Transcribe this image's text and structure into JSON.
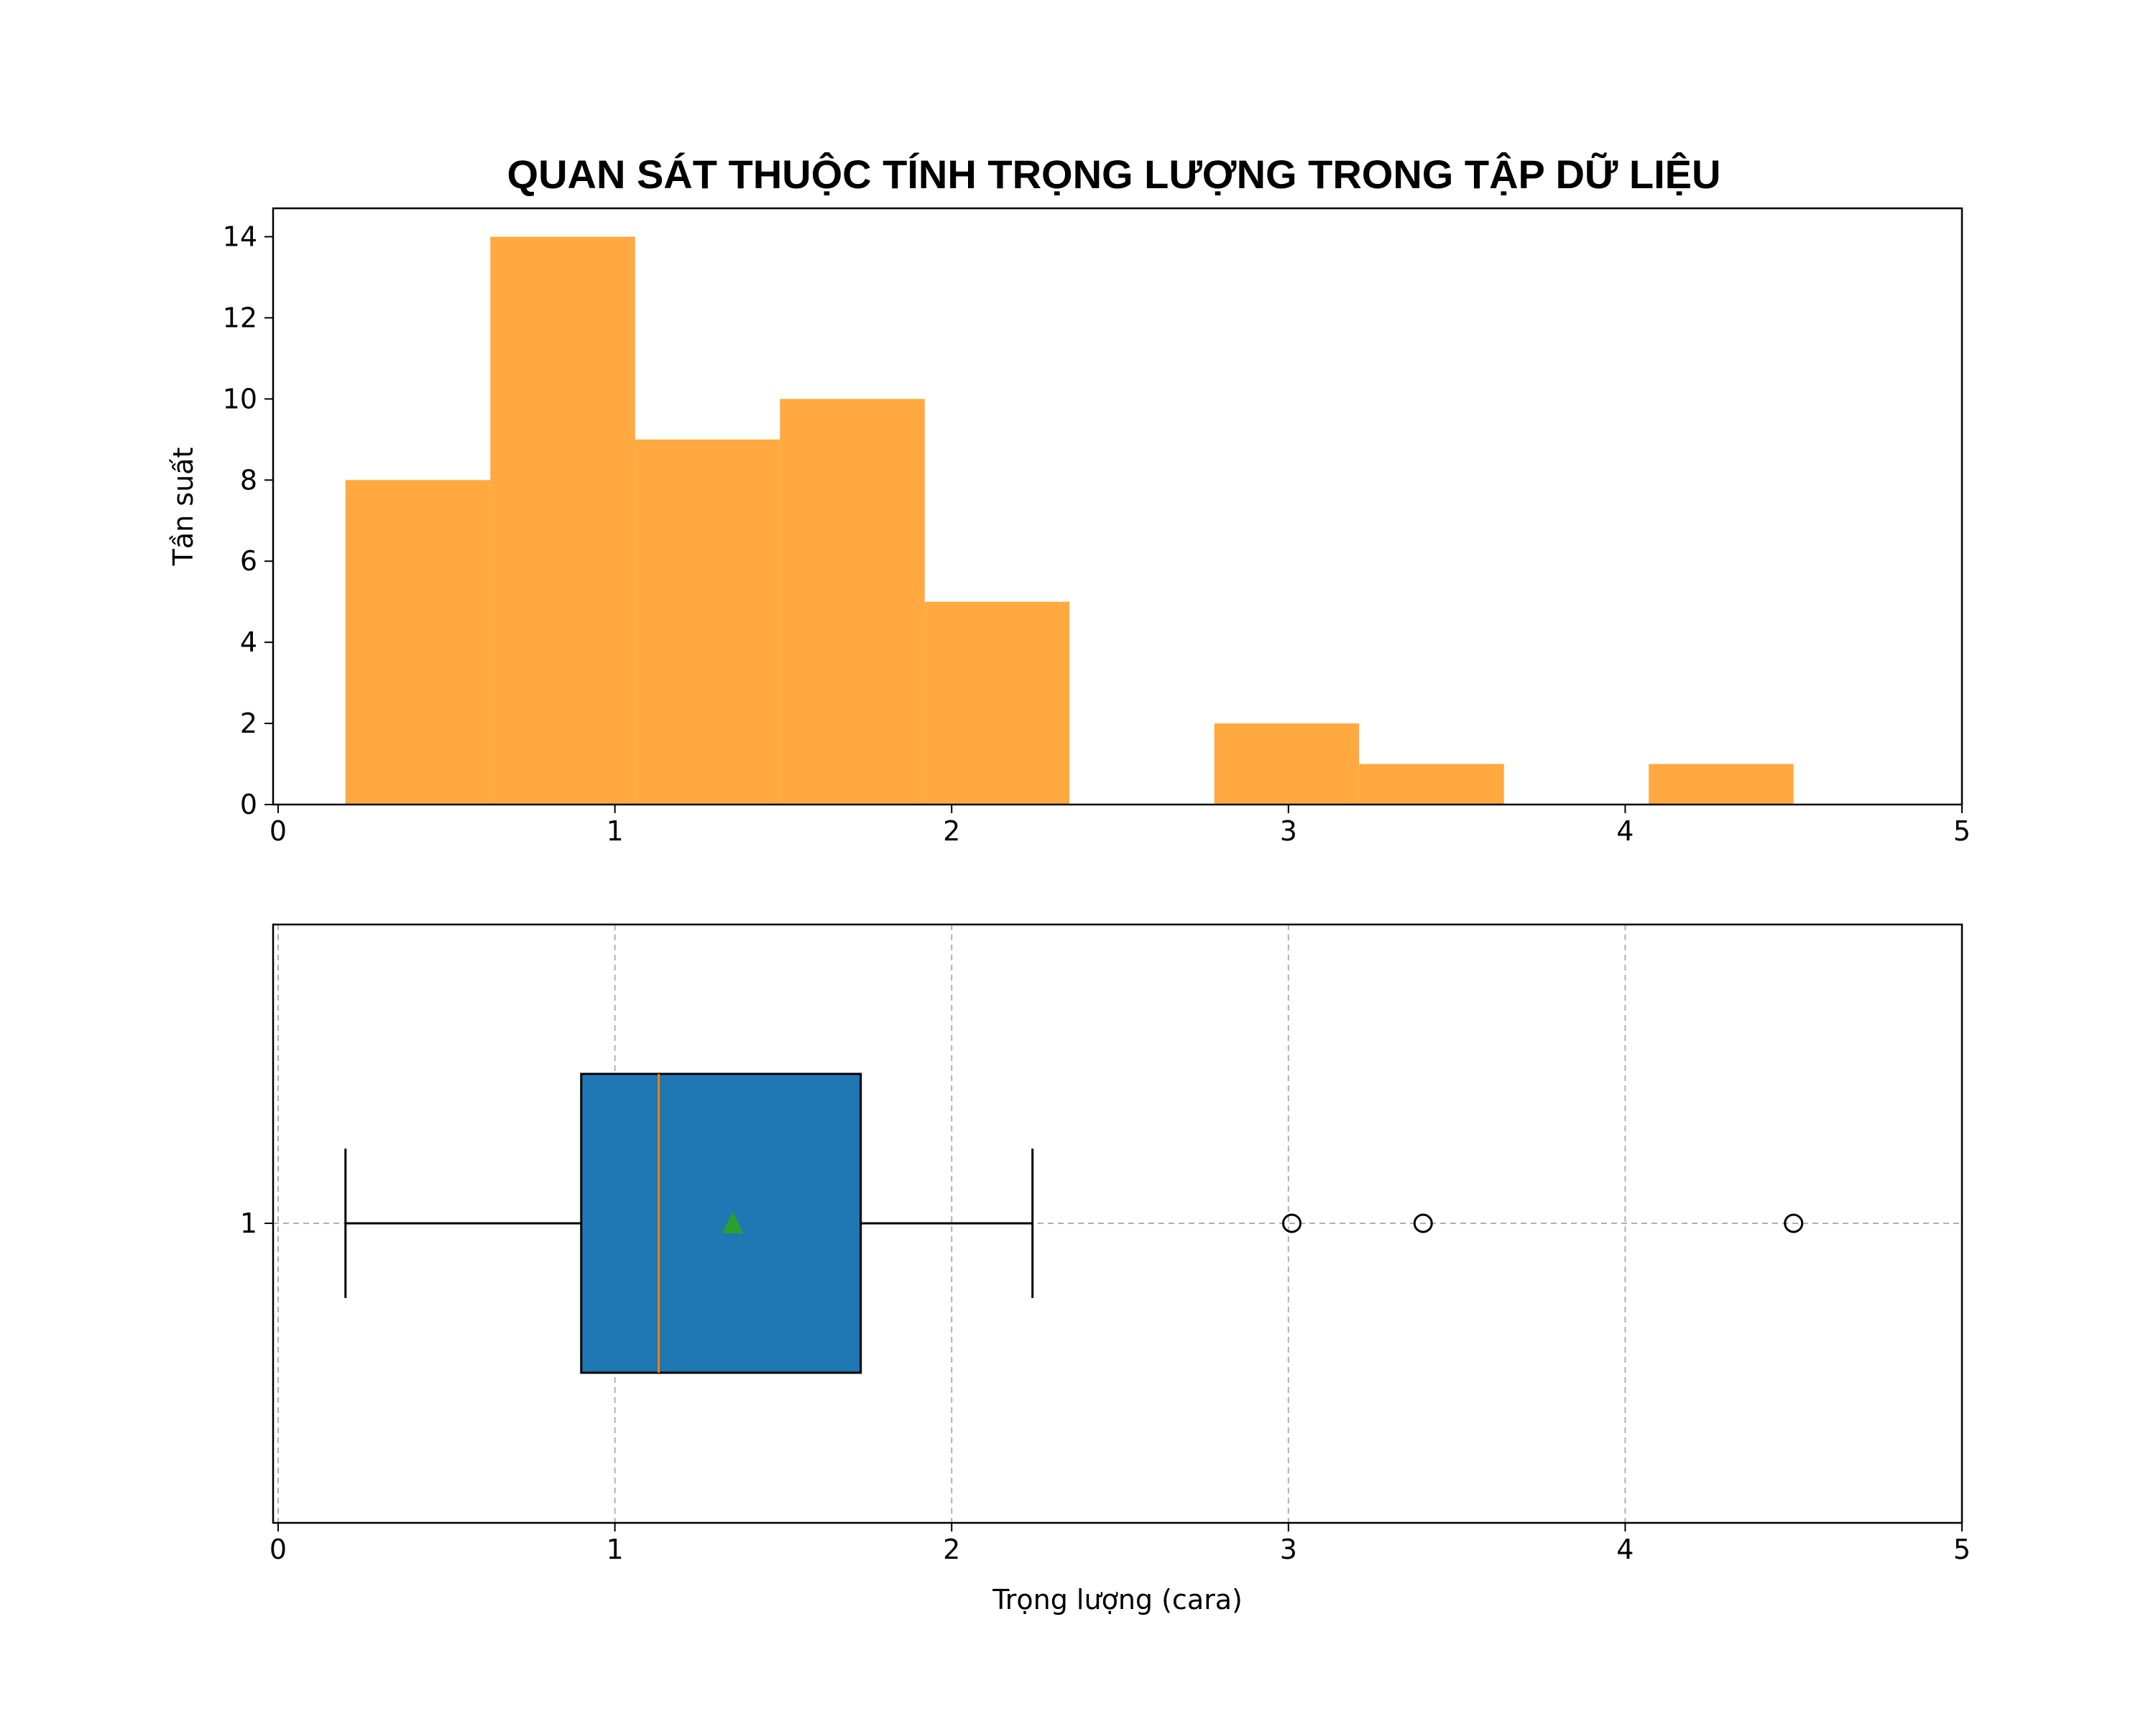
{
  "chart_data": [
    {
      "type": "bar",
      "title": "QUAN SÁT THUỘC TÍNH TRỌNG LƯỢNG TRONG TẬP DỮ LIỆU",
      "xlabel": "",
      "ylabel": "Tần suất",
      "xlim": [
        0,
        5
      ],
      "ylim": [
        0,
        14.7
      ],
      "xticks": [
        "0",
        "1",
        "2",
        "3",
        "4",
        "5"
      ],
      "yticks": [
        "0",
        "2",
        "4",
        "6",
        "8",
        "10",
        "12",
        "14"
      ],
      "grid": false,
      "bins": [
        {
          "x0": 0.2,
          "x1": 0.63,
          "value": 8
        },
        {
          "x0": 0.63,
          "x1": 1.06,
          "value": 14
        },
        {
          "x0": 1.06,
          "x1": 1.49,
          "value": 9
        },
        {
          "x0": 1.49,
          "x1": 1.92,
          "value": 10
        },
        {
          "x0": 1.92,
          "x1": 2.35,
          "value": 5
        },
        {
          "x0": 2.35,
          "x1": 2.78,
          "value": 0
        },
        {
          "x0": 2.78,
          "x1": 3.21,
          "value": 2
        },
        {
          "x0": 3.21,
          "x1": 3.64,
          "value": 1
        },
        {
          "x0": 3.64,
          "x1": 4.07,
          "value": 0
        },
        {
          "x0": 4.07,
          "x1": 4.5,
          "value": 1
        }
      ],
      "color": "#ffa940"
    },
    {
      "type": "box",
      "xlabel": "Trọng lượng (cara)",
      "xlim": [
        0,
        5
      ],
      "xticks": [
        "0",
        "1",
        "2",
        "3",
        "4",
        "5"
      ],
      "yticks": [
        "1"
      ],
      "grid": true,
      "whisker_low": 0.2,
      "q1": 0.9,
      "median": 1.13,
      "mean": 1.35,
      "q3": 1.73,
      "whisker_high": 2.24,
      "outliers": [
        3.01,
        3.4,
        4.5
      ],
      "box_color": "#1f77b4",
      "median_color": "#ff7f0e",
      "mean_color": "#2ca02c"
    }
  ]
}
